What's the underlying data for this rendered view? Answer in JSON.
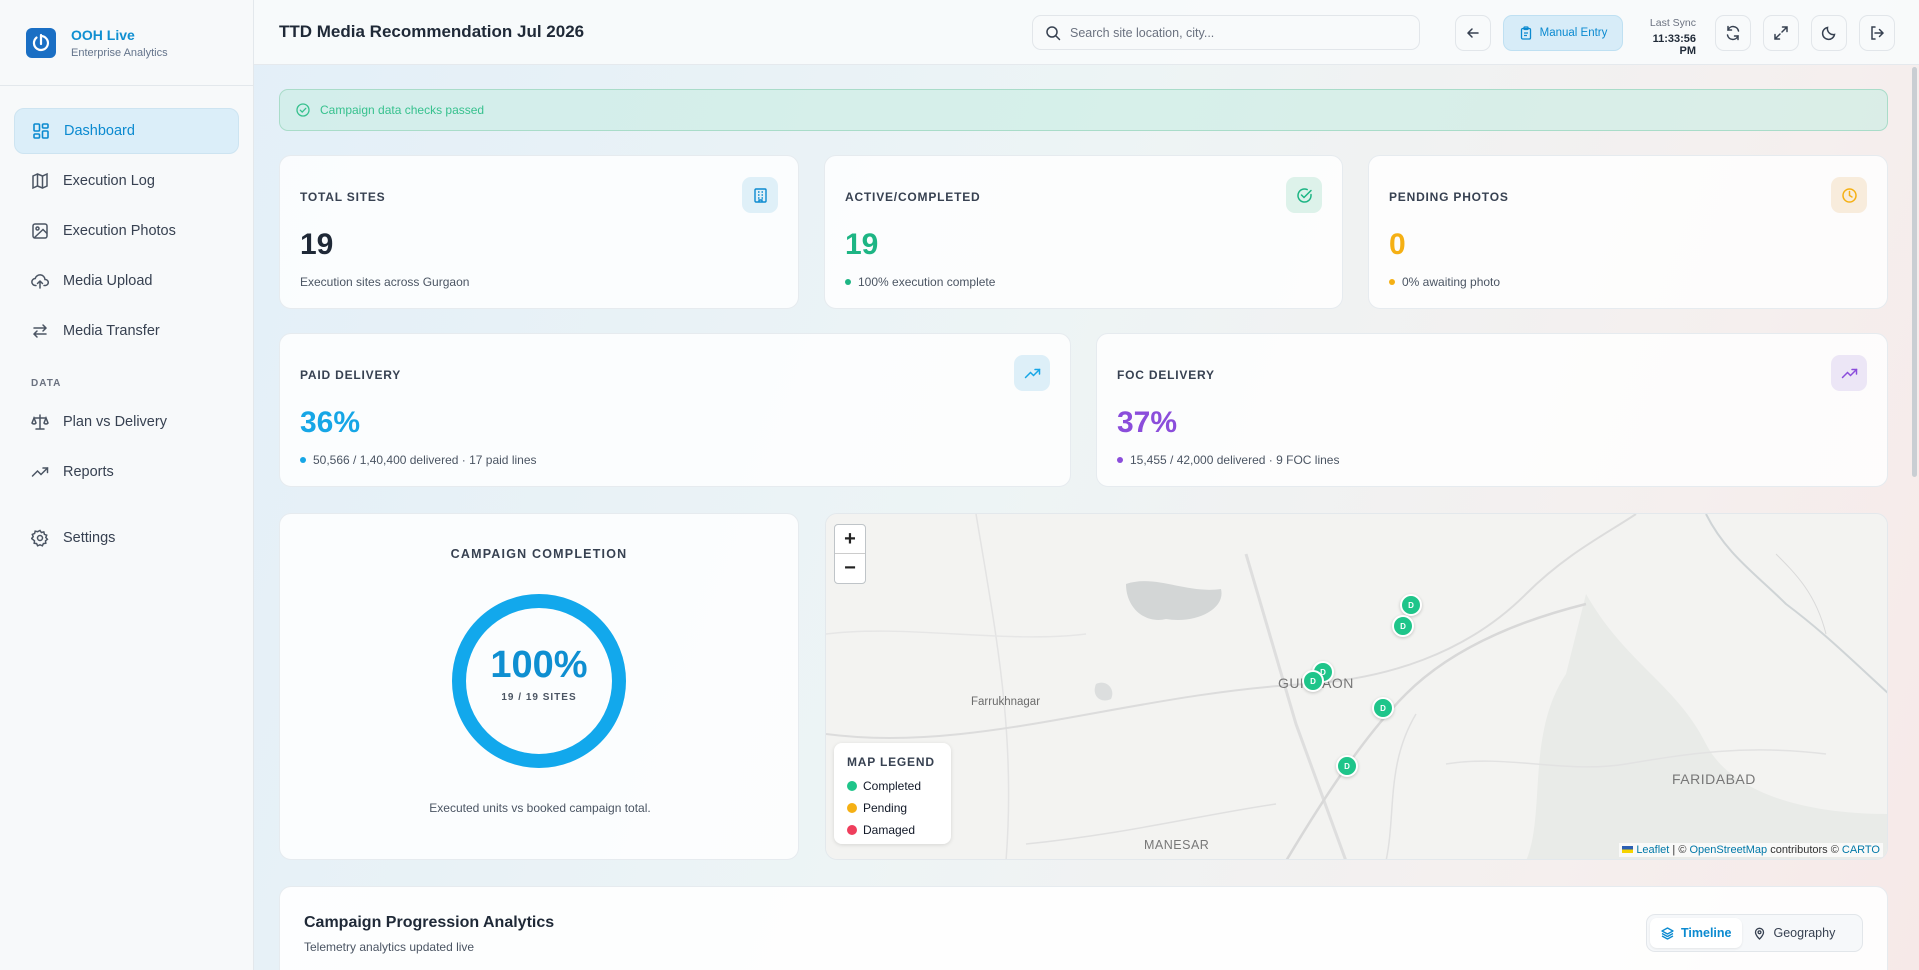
{
  "brand": {
    "name": "OOH Live",
    "subtitle": "Enterprise Analytics"
  },
  "sidebar": {
    "items": [
      {
        "label": "Dashboard",
        "icon": "dashboard-icon",
        "active": true
      },
      {
        "label": "Execution Log",
        "icon": "map-icon"
      },
      {
        "label": "Execution Photos",
        "icon": "image-icon"
      },
      {
        "label": "Media Upload",
        "icon": "cloud-upload-icon"
      },
      {
        "label": "Media Transfer",
        "icon": "transfer-icon"
      }
    ],
    "section_label": "DATA",
    "data_items": [
      {
        "label": "Plan vs Delivery",
        "icon": "scale-icon"
      },
      {
        "label": "Reports",
        "icon": "trend-icon"
      }
    ],
    "settings_label": "Settings"
  },
  "header": {
    "title": "TTD Media Recommendation Jul 2026",
    "search_placeholder": "Search site location, city...",
    "manual_entry_label": "Manual Entry",
    "last_sync_label": "Last Sync",
    "last_sync_time": "11:33:56 PM"
  },
  "alert": {
    "text": "Campaign data checks passed",
    "color": "#37c18e"
  },
  "stats": {
    "total_sites": {
      "label": "TOTAL SITES",
      "value": "19",
      "sub": "Execution sites across Gurgaon"
    },
    "active": {
      "label": "ACTIVE/COMPLETED",
      "value": "19",
      "sub": "100% execution complete",
      "color": "#1db584"
    },
    "pending": {
      "label": "PENDING PHOTOS",
      "value": "0",
      "sub": "0% awaiting photo",
      "color": "#f5b014"
    },
    "paid": {
      "label": "PAID DELIVERY",
      "value": "36%",
      "sub": "50,566 / 1,40,400 delivered · 17 paid lines",
      "color": "#16a6e6"
    },
    "foc": {
      "label": "FOC DELIVERY",
      "value": "37%",
      "sub": "15,455 / 42,000 delivered · 9 FOC lines",
      "color": "#8b4ddb"
    }
  },
  "completion": {
    "title": "CAMPAIGN COMPLETION",
    "percent_label": "100%",
    "percent": 1.0,
    "sites_label": "19 / 19 SITES",
    "note": "Executed units vs booked campaign total.",
    "color": "#12a8ec"
  },
  "map": {
    "zoom_in": "+",
    "zoom_out": "−",
    "labels": {
      "farrukhnagar": "Farrukhnagar",
      "gurgaon": "GURGAON",
      "faridabad": "FARIDABAD",
      "manesar": "MANESAR"
    },
    "marker_text": "D",
    "legend": {
      "title": "MAP LEGEND",
      "items": [
        {
          "label": "Completed",
          "color": "#1fc58a"
        },
        {
          "label": "Pending",
          "color": "#f5b014"
        },
        {
          "label": "Damaged",
          "color": "#ef3e5c"
        }
      ]
    },
    "attribution": {
      "leaflet": "Leaflet",
      "sep": " | © ",
      "osm": "OpenStreetMap",
      "mid": " contributors © ",
      "carto": "CARTO"
    }
  },
  "analytics": {
    "title": "Campaign Progression Analytics",
    "subtitle": "Telemetry analytics updated live",
    "tabs": [
      {
        "label": "Timeline",
        "active": true
      },
      {
        "label": "Geography"
      }
    ]
  }
}
